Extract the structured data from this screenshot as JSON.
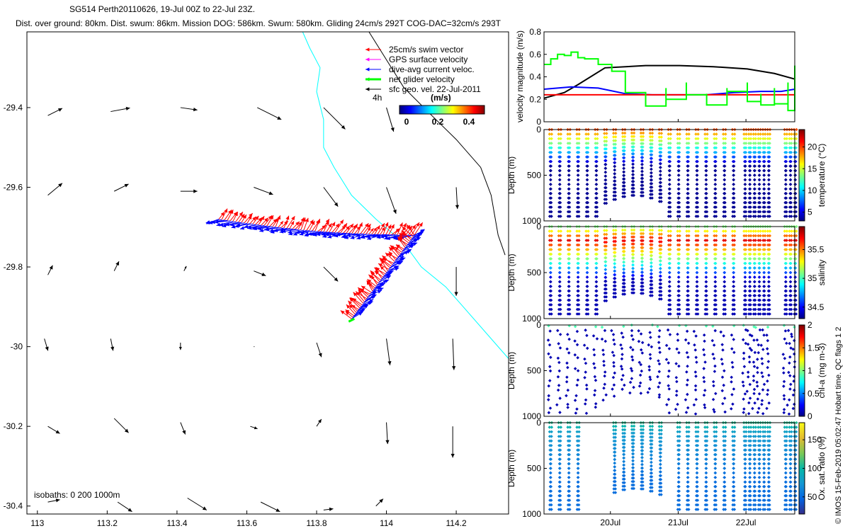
{
  "header": {
    "title_line1": "SG514 Perth20110626, 19-Jul 00Z to 22-Jul 23Z.",
    "title_line2": "Dist. over ground: 80km. Dist. swum: 86km. Mission DOG: 586km. Swum: 580km. Gliding 24cm/s 292T COG-DAC=32cm/s 293T"
  },
  "footer_text": "© IMOS 15-Feb-2019 05:02:47 Hobart time. QC flags 1  2",
  "colors": {
    "swim_vector": "#ff0000",
    "gps_surface": "#ff00ff",
    "dive_avg_current": "#0000ff",
    "net_glider": "#00ff00",
    "sfc_geo": "#000000",
    "isobath_0": "#00ffff",
    "isobath_200": "#000000",
    "frame": "#000000"
  },
  "chart_data": [
    {
      "id": "map",
      "type": "scatter",
      "title": "",
      "x_ticks": [
        "113",
        "113.2",
        "113.4",
        "113.6",
        "113.8",
        "114",
        "114.2"
      ],
      "y_ticks": [
        "-29.4",
        "-29.6",
        "-29.8",
        "-30",
        "-30.2",
        "-30.4"
      ],
      "xlim": [
        112.97,
        114.35
      ],
      "ylim": [
        -30.42,
        -29.21
      ],
      "legend": {
        "placement": "top-right",
        "entries": [
          {
            "label": "25cm/s swim vector",
            "color": "#ff0000"
          },
          {
            "label": "GPS surface velocity",
            "color": "#ff00ff"
          },
          {
            "label": "dive-avg current veloc.",
            "color": "#0000ff"
          },
          {
            "label": "net glider velocity",
            "color": "#00ff00"
          },
          {
            "label": "sfc geo. vel. 22-Jul-2011",
            "color": "#000000"
          }
        ],
        "interval_label": "4h",
        "colorbar_title": "(m/s)",
        "colorbar_ticks": [
          "0",
          "0.2",
          "0.4"
        ]
      },
      "isobath_label": "isobaths: 0   200  1000m",
      "track": {
        "start": [
          113.52,
          -29.68
        ],
        "turn": [
          114.08,
          -29.72
        ],
        "end": [
          113.9,
          -29.93
        ]
      },
      "geo_vectors": [
        [
          113.03,
          -29.42,
          0.6,
          0.3
        ],
        [
          113.21,
          -29.41,
          0.8,
          0.15
        ],
        [
          113.41,
          -29.4,
          0.7,
          -0.1
        ],
        [
          113.63,
          -29.4,
          1.0,
          -0.5
        ],
        [
          113.82,
          -29.4,
          0.9,
          -0.9
        ],
        [
          114.0,
          -29.4,
          0.3,
          -1.0
        ],
        [
          113.03,
          -29.62,
          0.6,
          0.5
        ],
        [
          113.22,
          -29.61,
          0.6,
          0.3
        ],
        [
          113.41,
          -29.61,
          0.7,
          0.0
        ],
        [
          113.62,
          -29.6,
          0.8,
          -0.3
        ],
        [
          113.82,
          -29.6,
          0.6,
          -0.8
        ],
        [
          114.0,
          -29.6,
          0.4,
          -1.1
        ],
        [
          114.2,
          -29.6,
          0.05,
          -0.9
        ],
        [
          113.03,
          -29.82,
          0.2,
          0.4
        ],
        [
          113.22,
          -29.81,
          0.2,
          0.4
        ],
        [
          113.42,
          -29.81,
          0.1,
          0.2
        ],
        [
          113.62,
          -29.81,
          0.5,
          -0.2
        ],
        [
          113.82,
          -29.8,
          0.6,
          -0.6
        ],
        [
          114.2,
          -29.8,
          0.0,
          -1.2
        ],
        [
          113.02,
          -29.98,
          0.15,
          -0.5
        ],
        [
          113.21,
          -29.98,
          0.1,
          -0.5
        ],
        [
          113.41,
          -29.99,
          0.0,
          -0.3
        ],
        [
          113.62,
          -30.0,
          0.03,
          0.0
        ],
        [
          113.8,
          -29.99,
          0.2,
          -0.6
        ],
        [
          114.0,
          -29.98,
          0.15,
          -1.1
        ],
        [
          114.19,
          -29.98,
          0.05,
          -1.3
        ],
        [
          113.03,
          -30.2,
          0.5,
          -0.3
        ],
        [
          113.22,
          -30.18,
          0.6,
          -0.6
        ],
        [
          113.41,
          -30.19,
          0.2,
          -0.5
        ],
        [
          113.61,
          -30.2,
          0.3,
          -0.1
        ],
        [
          113.8,
          -30.2,
          0.2,
          0.3
        ],
        [
          114.0,
          -30.19,
          0.05,
          -0.9
        ],
        [
          114.19,
          -30.2,
          0.0,
          -1.3
        ],
        [
          113.03,
          -30.39,
          0.5,
          0.1
        ],
        [
          113.23,
          -30.39,
          0.6,
          -0.4
        ],
        [
          113.43,
          -30.38,
          0.8,
          -0.5
        ],
        [
          113.64,
          -30.39,
          0.8,
          -0.4
        ],
        [
          113.82,
          -30.41,
          0.4,
          0.05
        ],
        [
          113.97,
          -30.4,
          0.3,
          0.3
        ]
      ]
    },
    {
      "id": "velocity",
      "type": "line",
      "ylabel": "velocity magnitude (m/s)",
      "ylim": [
        0,
        0.8
      ],
      "y_ticks": [
        "0",
        "0.2",
        "0.4",
        "0.6",
        "0.8"
      ],
      "x_start": "19-Jul-2011",
      "series": [
        {
          "color": "#000000",
          "x": [
            0,
            0.3,
            0.5,
            0.9,
            1.5,
            2.0,
            2.5,
            3.0,
            3.4,
            3.7
          ],
          "values": [
            0.21,
            0.26,
            0.33,
            0.48,
            0.5,
            0.5,
            0.49,
            0.47,
            0.43,
            0.38
          ]
        },
        {
          "color": "#0000ff",
          "x": [
            0,
            0.4,
            0.8,
            1.2,
            1.6,
            2.0,
            2.4,
            2.8,
            3.2,
            3.5,
            3.7
          ],
          "values": [
            0.29,
            0.31,
            0.3,
            0.25,
            0.24,
            0.24,
            0.24,
            0.26,
            0.27,
            0.27,
            0.29
          ]
        },
        {
          "color": "#ff0000",
          "x": [
            0,
            3.7
          ],
          "values": [
            0.24,
            0.24
          ]
        },
        {
          "color": "#00ff00",
          "x": [
            0,
            0.1,
            0.2,
            0.3,
            0.4,
            0.5,
            0.6,
            0.8,
            1.0,
            1.2,
            1.5,
            1.8,
            2.1,
            2.4,
            2.7,
            3.0,
            3.2,
            3.4,
            3.6,
            3.7
          ],
          "values": [
            0.51,
            0.56,
            0.6,
            0.59,
            0.62,
            0.57,
            0.56,
            0.51,
            0.45,
            0.26,
            0.14,
            0.2,
            0.24,
            0.15,
            0.27,
            0.18,
            0.15,
            0.16,
            0.1,
            0.5
          ]
        }
      ]
    },
    {
      "id": "temperature",
      "type": "scatter",
      "ylabel": "Depth (m)",
      "colorbar_label": "temperature (°C)",
      "colorbar_ticks": [
        "5",
        "10",
        "15",
        "20"
      ],
      "crange": [
        3,
        24
      ],
      "y_ticks": [
        "0",
        "500",
        "1000"
      ],
      "ylim": [
        0,
        1000
      ]
    },
    {
      "id": "salinity",
      "type": "scatter",
      "ylabel": "Depth (m)",
      "colorbar_label": "salinity",
      "colorbar_ticks": [
        "34.5",
        "35",
        "35.5"
      ],
      "crange": [
        34.3,
        35.9
      ],
      "y_ticks": [
        "0",
        "500",
        "1000"
      ],
      "ylim": [
        0,
        1000
      ]
    },
    {
      "id": "chla",
      "type": "scatter",
      "ylabel": "Depth (m)",
      "colorbar_label": "chl-a (mg m-3)",
      "colorbar_ticks": [
        "0",
        "0.5",
        "1",
        "1.5",
        "2"
      ],
      "crange": [
        0,
        2
      ],
      "y_ticks": [
        "0",
        "500",
        "1000"
      ],
      "ylim": [
        0,
        1000
      ]
    },
    {
      "id": "oxygen",
      "type": "scatter",
      "ylabel": "Depth (m)",
      "colorbar_label": "Ox. sat. ratio (%)",
      "colorbar_ticks": [
        "50",
        "100",
        "150"
      ],
      "crange": [
        20,
        180
      ],
      "y_ticks": [
        "0",
        "500",
        "1000"
      ],
      "ylim": [
        0,
        1000
      ],
      "x_ticks": [
        "20Jul",
        "21Jul",
        "22Jul"
      ],
      "x_tick_days": [
        1,
        2,
        3
      ]
    }
  ]
}
